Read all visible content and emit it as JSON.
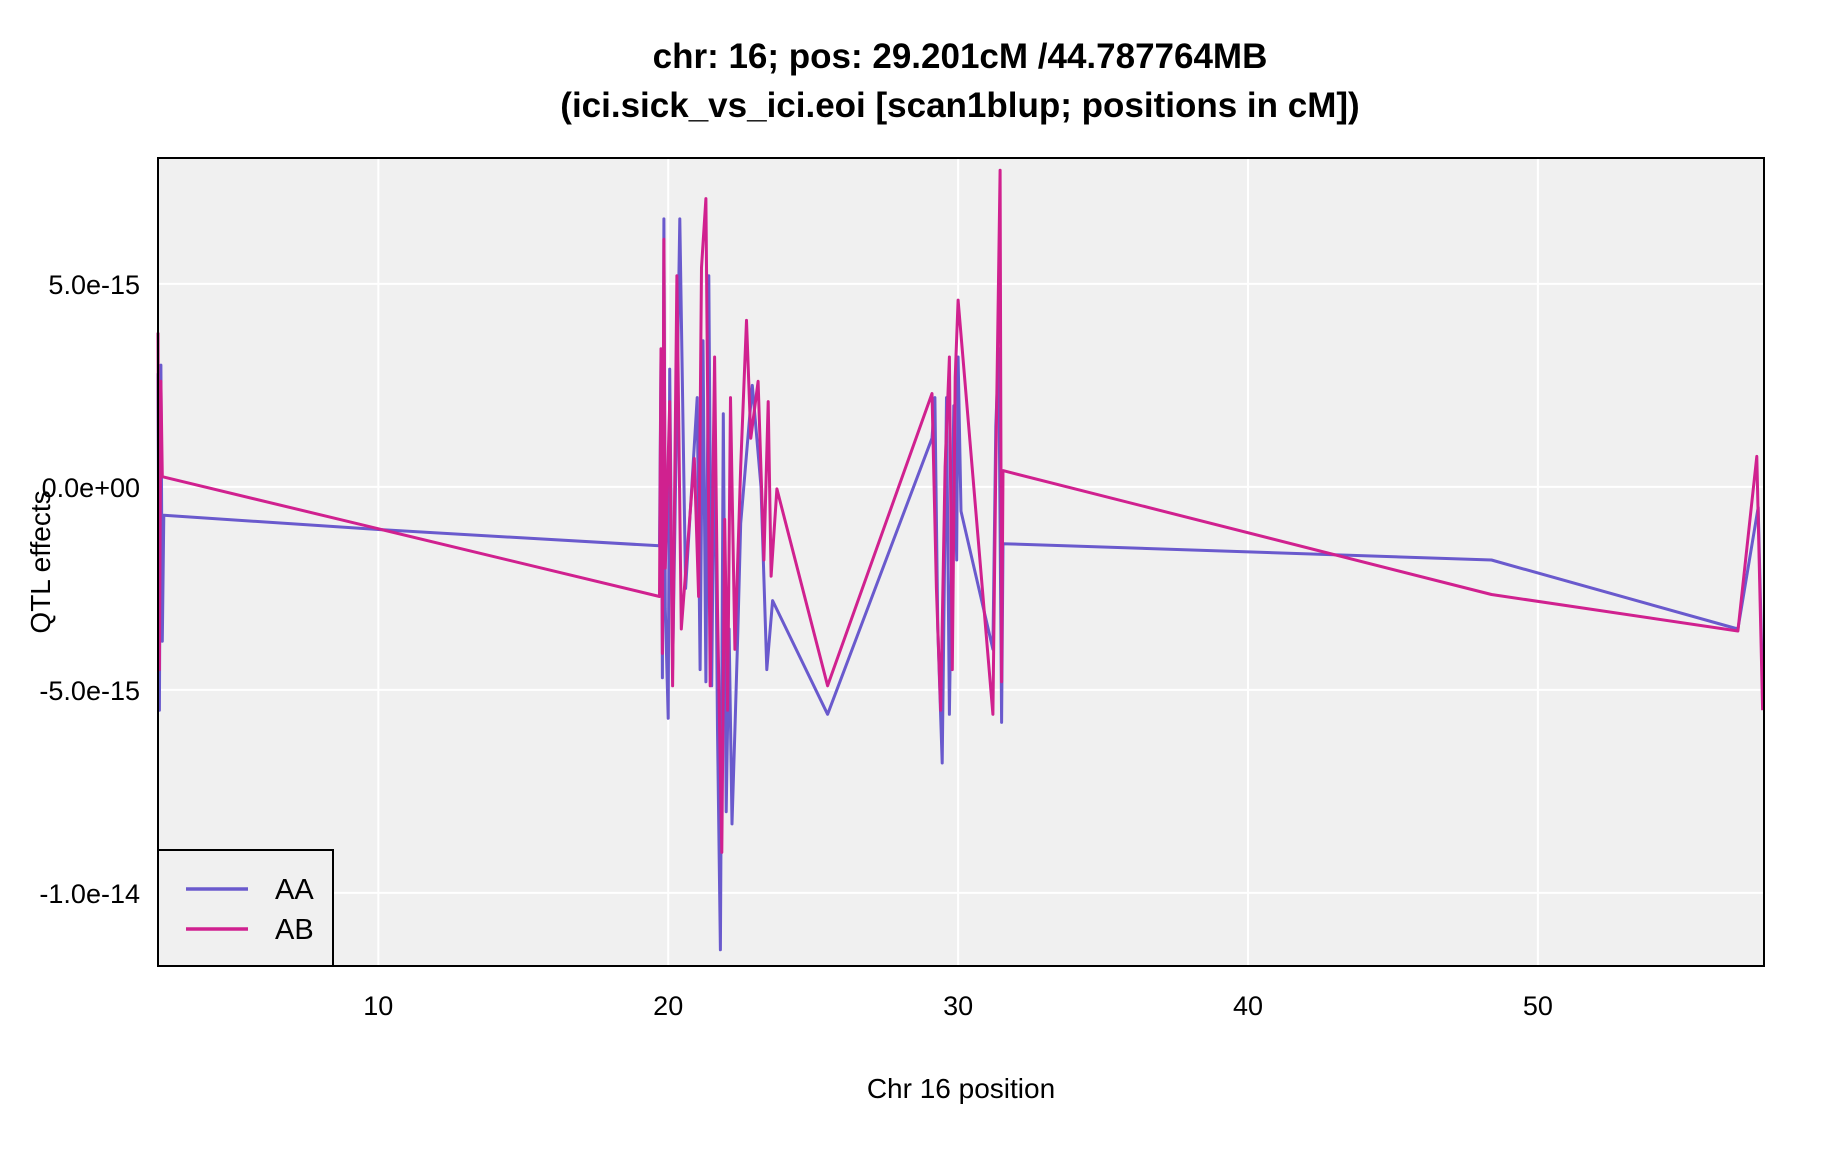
{
  "chart_data": {
    "type": "line",
    "title": "chr: 16; pos: 29.201cM /44.787764MB",
    "subtitle": "(ici.sick_vs_ici.eoi [scan1blup; positions in cM])",
    "xlabel": "Chr 16 position",
    "ylabel": "QTL effects",
    "xlim": [
      2.4,
      57.8
    ],
    "ylim": [
      -1.18e-14,
      8.1e-15
    ],
    "x_ticks": [
      10,
      20,
      30,
      40,
      50
    ],
    "x_tick_labels": [
      "10",
      "20",
      "30",
      "40",
      "50"
    ],
    "y_ticks": [
      5e-15,
      0,
      -5e-15,
      -1e-14
    ],
    "y_tick_labels": [
      "5.0e-15",
      "0.0e+00",
      "-5.0e-15",
      "-1.0e-14"
    ],
    "grid": true,
    "legend_position": "bottom-left",
    "series": [
      {
        "name": "AA",
        "color": "#6a5acd",
        "points": [
          [
            2.4,
            2.8e-15
          ],
          [
            2.45,
            -5.5e-15
          ],
          [
            2.5,
            3e-15
          ],
          [
            2.55,
            -3.8e-15
          ],
          [
            2.6,
            -7e-16
          ],
          [
            10.0,
            -1.05e-15
          ],
          [
            19.7,
            -1.45e-15
          ],
          [
            19.75,
            3.2e-15
          ],
          [
            19.8,
            -4.7e-15
          ],
          [
            19.85,
            6.6e-15
          ],
          [
            19.9,
            -3e-15
          ],
          [
            20.0,
            -5.7e-15
          ],
          [
            20.05,
            2.9e-15
          ],
          [
            20.15,
            -4.5e-15
          ],
          [
            20.4,
            6.6e-15
          ],
          [
            20.6,
            -2.5e-15
          ],
          [
            21.0,
            2.2e-15
          ],
          [
            21.1,
            -4.5e-15
          ],
          [
            21.2,
            3.6e-15
          ],
          [
            21.3,
            -4.8e-15
          ],
          [
            21.4,
            5.2e-15
          ],
          [
            21.5,
            -4.9e-15
          ],
          [
            21.6,
            2.3e-15
          ],
          [
            21.7,
            -6e-15
          ],
          [
            21.8,
            -1.14e-14
          ],
          [
            21.9,
            1.8e-15
          ],
          [
            22.0,
            -8e-15
          ],
          [
            22.1,
            -3.5e-15
          ],
          [
            22.2,
            -8.3e-15
          ],
          [
            22.3,
            -6e-15
          ],
          [
            22.4,
            -3.6e-15
          ],
          [
            22.5,
            -9e-16
          ],
          [
            22.9,
            2.5e-15
          ],
          [
            23.2,
            0.0
          ],
          [
            23.4,
            -4.5e-15
          ],
          [
            23.6,
            -2.8e-15
          ],
          [
            25.5,
            -5.6e-15
          ],
          [
            29.1,
            1.2e-15
          ],
          [
            29.2,
            2.2e-15
          ],
          [
            29.3,
            -3.5e-15
          ],
          [
            29.45,
            -6.8e-15
          ],
          [
            29.6,
            2.2e-15
          ],
          [
            29.7,
            -5.6e-15
          ],
          [
            29.85,
            2e-15
          ],
          [
            29.95,
            -1.8e-15
          ],
          [
            30.0,
            3.2e-15
          ],
          [
            30.1,
            -6e-16
          ],
          [
            31.2,
            -4e-15
          ],
          [
            31.3,
            1.5e-15
          ],
          [
            31.4,
            3.4e-15
          ],
          [
            31.5,
            -5.8e-15
          ],
          [
            31.55,
            -1.4e-15
          ],
          [
            48.4,
            -1.8e-15
          ],
          [
            56.9,
            -3.5e-15
          ],
          [
            57.6,
            -5e-16
          ],
          [
            57.75,
            -5e-15
          ]
        ]
      },
      {
        "name": "AB",
        "color": "#d0218f",
        "points": [
          [
            2.4,
            3.8e-15
          ],
          [
            2.45,
            -4.5e-15
          ],
          [
            2.5,
            2.6e-15
          ],
          [
            2.55,
            2.5e-16
          ],
          [
            19.7,
            -2.7e-15
          ],
          [
            19.75,
            3.4e-15
          ],
          [
            19.8,
            -4.1e-15
          ],
          [
            19.85,
            6.1e-15
          ],
          [
            19.9,
            -2e-15
          ],
          [
            20.05,
            2.1e-15
          ],
          [
            20.15,
            -4.9e-15
          ],
          [
            20.3,
            5.2e-15
          ],
          [
            20.45,
            -3.5e-15
          ],
          [
            20.9,
            7e-16
          ],
          [
            21.05,
            -2.7e-15
          ],
          [
            21.15,
            5.4e-15
          ],
          [
            21.3,
            7.1e-15
          ],
          [
            21.45,
            -4.9e-15
          ],
          [
            21.6,
            3.2e-15
          ],
          [
            21.7,
            -3e-15
          ],
          [
            21.85,
            -9e-15
          ],
          [
            21.95,
            -8e-16
          ],
          [
            22.05,
            -5.5e-15
          ],
          [
            22.15,
            2.2e-15
          ],
          [
            22.3,
            -4e-15
          ],
          [
            22.5,
            5e-16
          ],
          [
            22.7,
            4.1e-15
          ],
          [
            22.85,
            1.2e-15
          ],
          [
            23.1,
            2.6e-15
          ],
          [
            23.3,
            -1.8e-15
          ],
          [
            23.45,
            2.1e-15
          ],
          [
            23.55,
            -2.2e-15
          ],
          [
            23.75,
            -5e-17
          ],
          [
            25.5,
            -4.9e-15
          ],
          [
            29.1,
            2.3e-15
          ],
          [
            29.25,
            -2.5e-15
          ],
          [
            29.4,
            -5.5e-15
          ],
          [
            29.55,
            5e-16
          ],
          [
            29.7,
            3.2e-15
          ],
          [
            29.8,
            -4.5e-15
          ],
          [
            29.9,
            2.7e-15
          ],
          [
            30.0,
            4.6e-15
          ],
          [
            31.2,
            -5.6e-15
          ],
          [
            31.3,
            5e-16
          ],
          [
            31.45,
            7.8e-15
          ],
          [
            31.5,
            -4.8e-15
          ],
          [
            31.55,
            4e-16
          ],
          [
            48.4,
            -2.65e-15
          ],
          [
            56.9,
            -3.55e-15
          ],
          [
            57.55,
            7.5e-16
          ],
          [
            57.75,
            -5.5e-15
          ]
        ]
      }
    ]
  }
}
